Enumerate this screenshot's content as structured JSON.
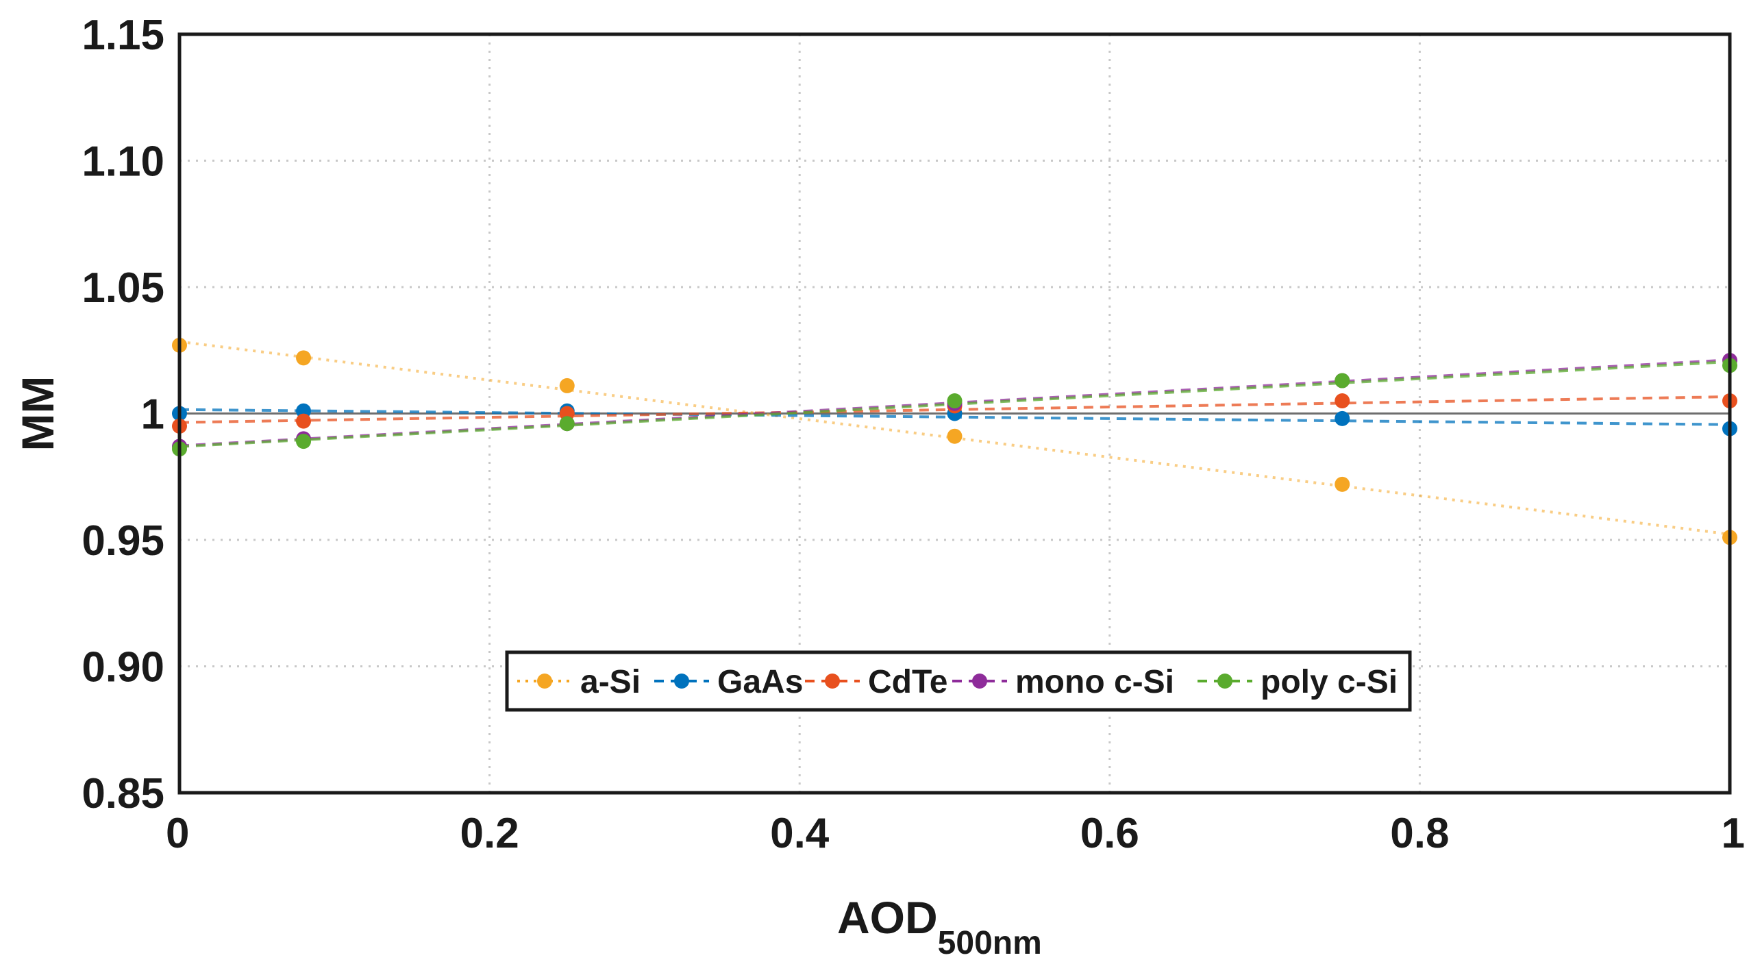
{
  "chart_data": {
    "type": "line",
    "title": "",
    "xlabel": "AOD",
    "xlabel_subscript": "500nm",
    "ylabel": "MM",
    "xlim": [
      0,
      1
    ],
    "ylim": [
      0.85,
      1.15
    ],
    "xticks": [
      0,
      0.2,
      0.4,
      0.6,
      0.8,
      1
    ],
    "xtick_labels": [
      "0",
      "0.2",
      "0.4",
      "0.6",
      "0.8",
      "1"
    ],
    "yticks": [
      0.85,
      0.9,
      0.95,
      1.0,
      1.05,
      1.1,
      1.15
    ],
    "ytick_labels": [
      "0.85",
      "0.90",
      "0.95",
      "1",
      "1.05",
      "1.10",
      "1.15"
    ],
    "grid": true,
    "legend_position": "lower-center",
    "x": [
      0,
      0.08,
      0.25,
      0.5,
      0.75,
      1.0
    ],
    "series": [
      {
        "name": "a-Si",
        "color": "#f5a623",
        "line": "dotted",
        "values": [
          1.027,
          1.022,
          1.011,
          0.991,
          0.972,
          0.951
        ]
      },
      {
        "name": "GaAs",
        "color": "#0072bd",
        "line": "dashed",
        "values": [
          1.0,
          1.001,
          1.001,
          1.0,
          0.998,
          0.994
        ]
      },
      {
        "name": "CdTe",
        "color": "#e8501e",
        "line": "dashed",
        "values": [
          0.995,
          0.997,
          1.0,
          1.003,
          1.005,
          1.005
        ]
      },
      {
        "name": "mono c-Si",
        "color": "#8e2c9a",
        "line": "dashed",
        "values": [
          0.987,
          0.99,
          0.996,
          1.004,
          1.013,
          1.021
        ]
      },
      {
        "name": "poly c-Si",
        "color": "#5aab2e",
        "line": "dashed",
        "values": [
          0.986,
          0.989,
          0.996,
          1.005,
          1.013,
          1.019
        ]
      }
    ],
    "reference_line": {
      "y": 1.0,
      "color": "#6e6e6e"
    }
  }
}
